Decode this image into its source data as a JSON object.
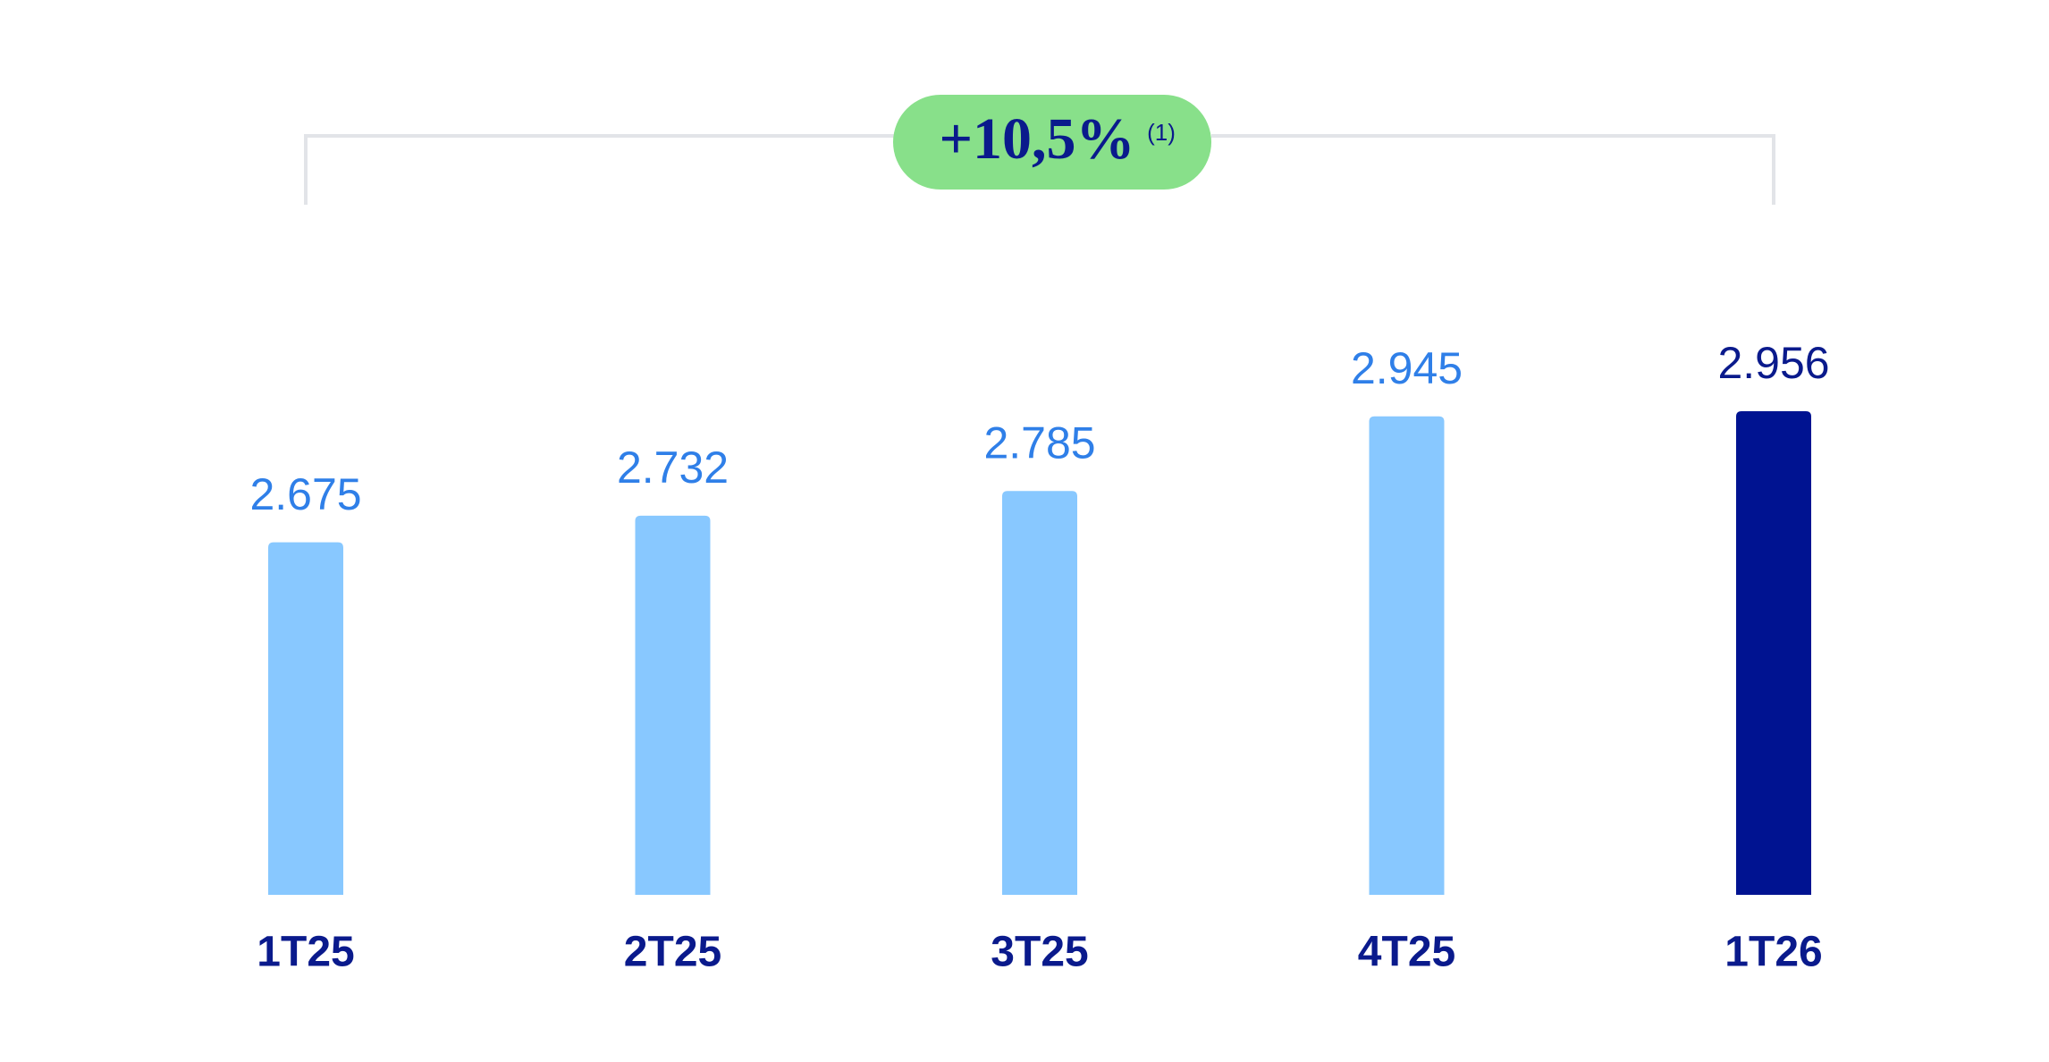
{
  "chart_data": {
    "type": "bar",
    "categories": [
      "1T25",
      "2T25",
      "3T25",
      "4T25",
      "1T26"
    ],
    "values": [
      2675,
      2732,
      2785,
      2945,
      2956
    ],
    "value_labels": [
      "2.675",
      "2.732",
      "2.785",
      "2.945",
      "2.956"
    ],
    "colors": [
      "#88c8ff",
      "#88c8ff",
      "#88c8ff",
      "#88c8ff",
      "#001391"
    ],
    "label_colors": [
      "#2f7fe8",
      "#2f7fe8",
      "#2f7fe8",
      "#2f7fe8",
      "#0a1a8c"
    ],
    "annotation": "+10,5%",
    "annotation_note": "(1)"
  }
}
